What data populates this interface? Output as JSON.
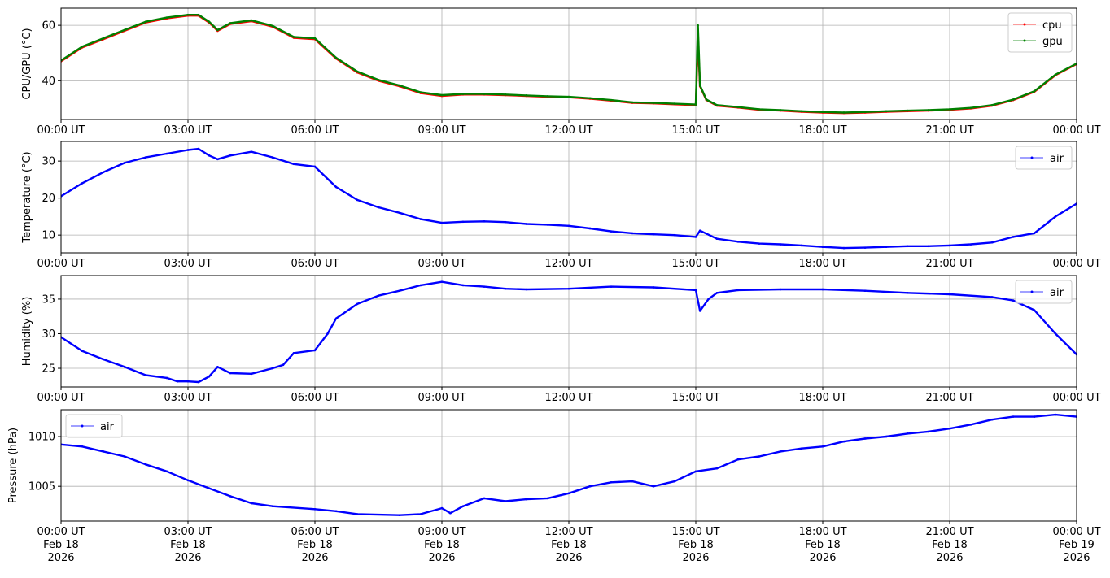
{
  "chart_data": [
    {
      "type": "line",
      "ylabel": "CPU/GPU (°C)",
      "ylim": [
        26,
        66.2
      ],
      "yticks": [
        40,
        60
      ],
      "grid": true,
      "legend": "top-right",
      "xlim": [
        0,
        24
      ],
      "xticks": [
        0,
        3,
        6,
        9,
        12,
        15,
        18,
        21,
        24
      ],
      "xticklabels": [
        "00:00 UT",
        "03:00 UT",
        "06:00 UT",
        "09:00 UT",
        "12:00 UT",
        "15:00 UT",
        "18:00 UT",
        "21:00 UT",
        "00:00 UT"
      ],
      "series": [
        {
          "name": "cpu",
          "color": "#ff0000",
          "x": [
            0,
            0.5,
            1,
            1.5,
            2,
            2.5,
            3,
            3.25,
            3.5,
            3.7,
            4,
            4.5,
            5,
            5.5,
            6,
            6.5,
            7,
            7.5,
            8,
            8.5,
            9,
            9.5,
            10,
            10.5,
            11,
            11.5,
            12,
            12.5,
            13,
            13.5,
            14,
            14.5,
            15,
            15.05,
            15.1,
            15.25,
            15.5,
            16,
            16.5,
            17,
            17.5,
            18,
            18.5,
            19,
            19.5,
            20,
            20.5,
            21,
            21.5,
            22,
            22.5,
            23,
            23.5,
            24
          ],
          "y": [
            47,
            52,
            55,
            58,
            61,
            62.5,
            63.5,
            63.5,
            61,
            58,
            60.5,
            61.5,
            59.5,
            55.5,
            55,
            48,
            43,
            40,
            38,
            35.5,
            34.5,
            35,
            35,
            34.8,
            34.5,
            34.2,
            34,
            33.5,
            32.8,
            32,
            31.8,
            31.5,
            31.2,
            55,
            38,
            33,
            31,
            30.3,
            29.5,
            29.2,
            28.8,
            28.5,
            28.3,
            28.5,
            28.8,
            29,
            29.2,
            29.5,
            30,
            31,
            33,
            36,
            42,
            46
          ]
        },
        {
          "name": "gpu",
          "color": "#008000",
          "x": [
            0,
            0.5,
            1,
            1.5,
            2,
            2.5,
            3,
            3.25,
            3.5,
            3.7,
            4,
            4.5,
            5,
            5.5,
            6,
            6.5,
            7,
            7.5,
            8,
            8.5,
            9,
            9.5,
            10,
            10.5,
            11,
            11.5,
            12,
            12.5,
            13,
            13.5,
            14,
            14.5,
            15,
            15.05,
            15.1,
            15.25,
            15.5,
            16,
            16.5,
            17,
            17.5,
            18,
            18.5,
            19,
            19.5,
            20,
            20.5,
            21,
            21.5,
            22,
            22.5,
            23,
            23.5,
            24
          ],
          "y": [
            47.3,
            52.3,
            55.3,
            58.3,
            61.3,
            62.8,
            63.8,
            63.8,
            61.3,
            58.3,
            60.8,
            61.8,
            59.8,
            55.8,
            55.3,
            48.3,
            43.3,
            40.3,
            38.3,
            35.8,
            34.8,
            35.2,
            35.2,
            35,
            34.7,
            34.4,
            34.2,
            33.7,
            33,
            32.2,
            32,
            31.7,
            31.4,
            60,
            38.3,
            33.2,
            31.2,
            30.5,
            29.7,
            29.4,
            29,
            28.7,
            28.5,
            28.7,
            29,
            29.2,
            29.4,
            29.7,
            30.2,
            31.2,
            33.2,
            36.2,
            42.2,
            46.2
          ]
        }
      ]
    },
    {
      "type": "line",
      "ylabel": "Temperature (°C)",
      "ylim": [
        5.2,
        35.3
      ],
      "yticks": [
        10,
        20,
        30
      ],
      "grid": true,
      "legend": "top-right",
      "xlim": [
        0,
        24
      ],
      "xticks": [
        0,
        3,
        6,
        9,
        12,
        15,
        18,
        21,
        24
      ],
      "xticklabels": [
        "00:00 UT",
        "03:00 UT",
        "06:00 UT",
        "09:00 UT",
        "12:00 UT",
        "15:00 UT",
        "18:00 UT",
        "21:00 UT",
        "00:00 UT"
      ],
      "series": [
        {
          "name": "air",
          "color": "#0000ff",
          "x": [
            0,
            0.5,
            1,
            1.5,
            2,
            2.5,
            3,
            3.25,
            3.5,
            3.7,
            4,
            4.5,
            5,
            5.5,
            6,
            6.5,
            7,
            7.5,
            8,
            8.5,
            9,
            9.5,
            10,
            10.5,
            11,
            11.5,
            12,
            12.5,
            13,
            13.5,
            14,
            14.5,
            15,
            15.1,
            15.5,
            16,
            16.5,
            17,
            17.5,
            18,
            18.5,
            19,
            19.5,
            20,
            20.5,
            21,
            21.5,
            22,
            22.5,
            23,
            23.5,
            24
          ],
          "y": [
            20.5,
            24,
            27,
            29.5,
            31,
            32,
            33,
            33.3,
            31.5,
            30.5,
            31.5,
            32.5,
            31,
            29.2,
            28.5,
            23,
            19.5,
            17.5,
            16,
            14.3,
            13.3,
            13.6,
            13.7,
            13.5,
            13,
            12.8,
            12.5,
            11.8,
            11,
            10.5,
            10.2,
            10,
            9.5,
            11.2,
            9,
            8.2,
            7.7,
            7.5,
            7.2,
            6.8,
            6.5,
            6.6,
            6.8,
            7,
            7,
            7.2,
            7.5,
            8,
            9.5,
            10.5,
            15,
            18.5
          ]
        }
      ]
    },
    {
      "type": "line",
      "ylabel": "Humidity (%)",
      "ylim": [
        22.3,
        38.4
      ],
      "yticks": [
        25,
        30,
        35
      ],
      "grid": true,
      "legend": "top-right",
      "xlim": [
        0,
        24
      ],
      "xticks": [
        0,
        3,
        6,
        9,
        12,
        15,
        18,
        21,
        24
      ],
      "xticklabels": [
        "00:00 UT",
        "03:00 UT",
        "06:00 UT",
        "09:00 UT",
        "12:00 UT",
        "15:00 UT",
        "18:00 UT",
        "21:00 UT",
        "00:00 UT"
      ],
      "series": [
        {
          "name": "air",
          "color": "#0000ff",
          "x": [
            0,
            0.5,
            1,
            1.5,
            2,
            2.5,
            2.75,
            3,
            3.25,
            3.5,
            3.7,
            4,
            4.5,
            5,
            5.25,
            5.5,
            6,
            6.3,
            6.5,
            7,
            7.5,
            8,
            8.5,
            9,
            9.5,
            10,
            10.5,
            11,
            12,
            13,
            14,
            15,
            15.1,
            15.3,
            15.5,
            16,
            17,
            18,
            19,
            20,
            21,
            22,
            22.5,
            23,
            23.5,
            24
          ],
          "y": [
            29.5,
            27.5,
            26.3,
            25.2,
            24,
            23.6,
            23.1,
            23.1,
            23,
            23.8,
            25.2,
            24.3,
            24.2,
            25,
            25.5,
            27.2,
            27.6,
            30,
            32.2,
            34.3,
            35.5,
            36.2,
            37,
            37.5,
            37,
            36.8,
            36.5,
            36.4,
            36.5,
            36.8,
            36.7,
            36.3,
            33.3,
            35,
            35.9,
            36.3,
            36.4,
            36.4,
            36.2,
            35.9,
            35.7,
            35.3,
            34.8,
            33.4,
            30,
            27
          ]
        }
      ]
    },
    {
      "type": "line",
      "ylabel": "Pressure (hPa)",
      "ylim": [
        1001.5,
        1012.7
      ],
      "yticks": [
        1005,
        1010
      ],
      "grid": true,
      "legend": "top-left",
      "xlim": [
        0,
        24
      ],
      "xticks": [
        0,
        3,
        6,
        9,
        12,
        15,
        18,
        21,
        24
      ],
      "xticklabels": [
        [
          "00:00 UT",
          "Feb 18",
          "2026"
        ],
        [
          "03:00 UT",
          "Feb 18",
          "2026"
        ],
        [
          "06:00 UT",
          "Feb 18",
          "2026"
        ],
        [
          "09:00 UT",
          "Feb 18",
          "2026"
        ],
        [
          "12:00 UT",
          "Feb 18",
          "2026"
        ],
        [
          "15:00 UT",
          "Feb 18",
          "2026"
        ],
        [
          "18:00 UT",
          "Feb 18",
          "2026"
        ],
        [
          "21:00 UT",
          "Feb 18",
          "2026"
        ],
        [
          "00:00 UT",
          "Feb 19",
          "2026"
        ]
      ],
      "series": [
        {
          "name": "air",
          "color": "#0000ff",
          "x": [
            0,
            0.5,
            1,
            1.5,
            2,
            2.5,
            3,
            3.5,
            4,
            4.5,
            5,
            6,
            6.5,
            7,
            8,
            8.5,
            9,
            9.2,
            9.5,
            10,
            10.5,
            11,
            11.5,
            12,
            12.5,
            13,
            13.5,
            14,
            14.5,
            15,
            15.5,
            16,
            16.5,
            17,
            17.5,
            18,
            18.5,
            19,
            19.5,
            20,
            20.5,
            21,
            21.5,
            22,
            22.5,
            23,
            23.5,
            24
          ],
          "y": [
            1009.2,
            1009,
            1008.5,
            1008,
            1007.2,
            1006.5,
            1005.6,
            1004.8,
            1004,
            1003.3,
            1003,
            1002.7,
            1002.5,
            1002.2,
            1002.1,
            1002.2,
            1002.8,
            1002.3,
            1003,
            1003.8,
            1003.5,
            1003.7,
            1003.8,
            1004.3,
            1005,
            1005.4,
            1005.5,
            1005,
            1005.5,
            1006.5,
            1006.8,
            1007.7,
            1008,
            1008.5,
            1008.8,
            1009,
            1009.5,
            1009.8,
            1010,
            1010.3,
            1010.5,
            1010.8,
            1011.2,
            1011.7,
            1012,
            1012,
            1012.2,
            1012
          ]
        }
      ]
    }
  ]
}
